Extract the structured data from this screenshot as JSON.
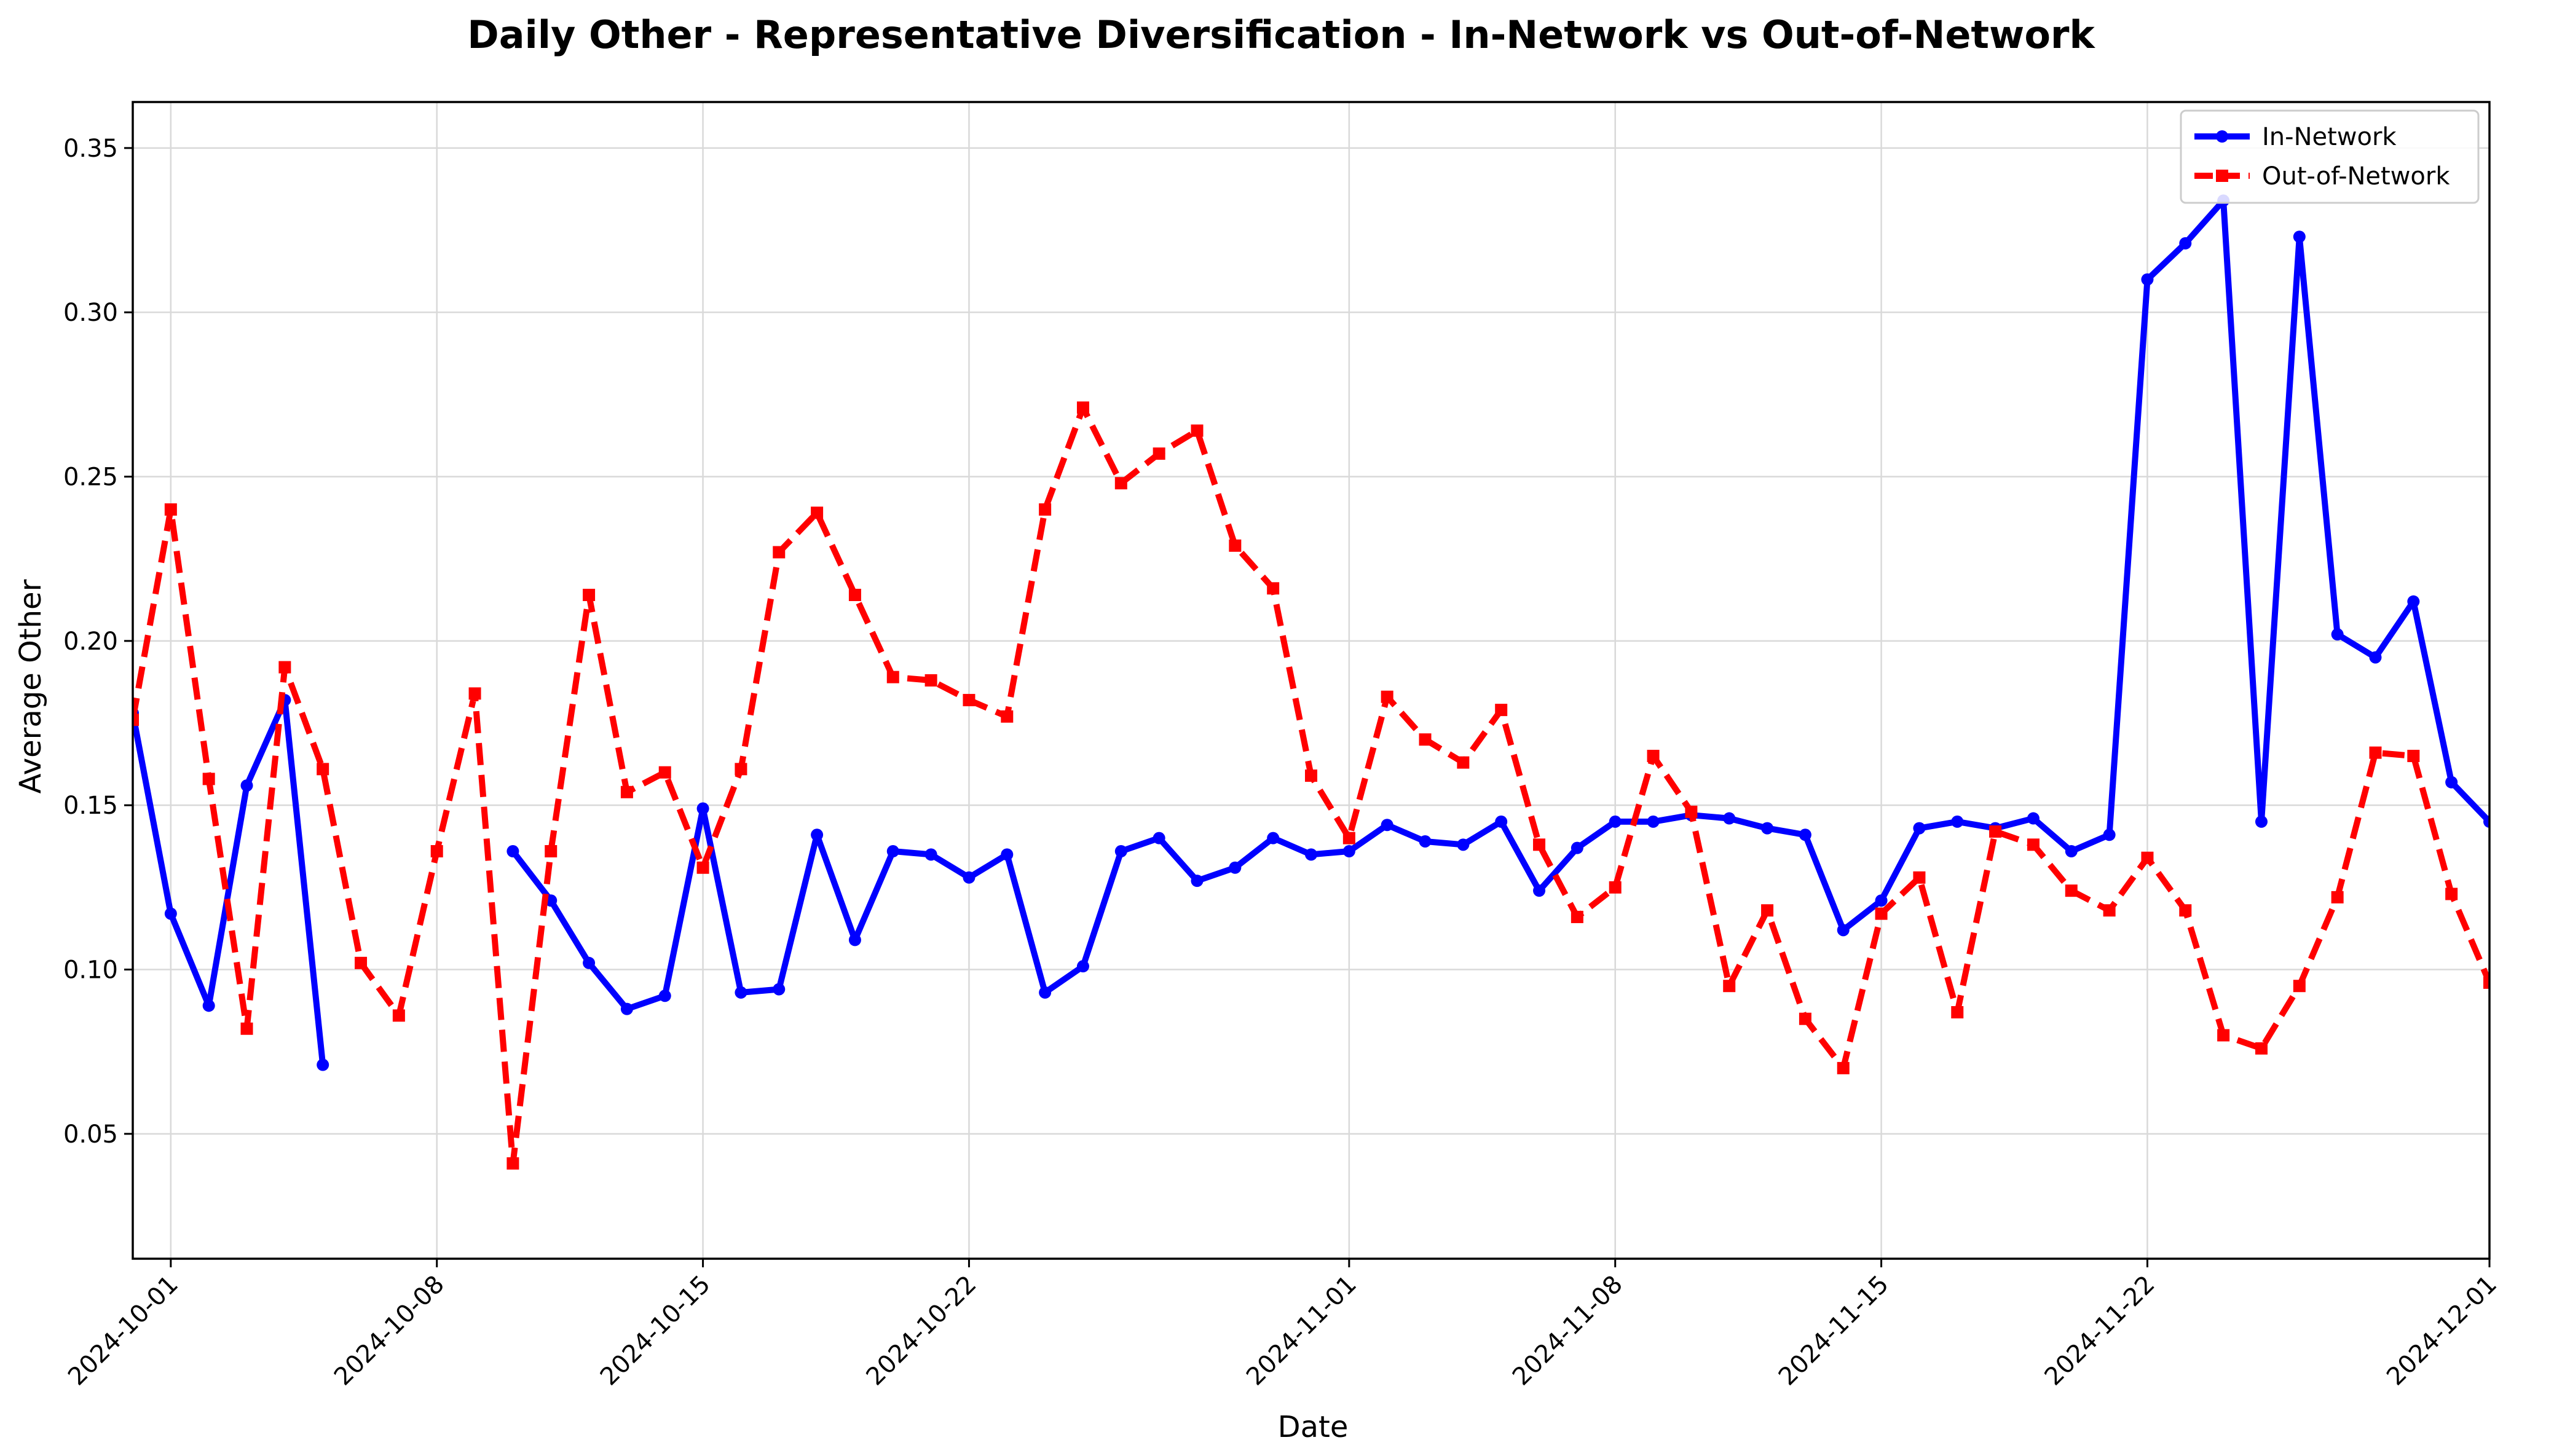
{
  "chart_data": {
    "type": "line",
    "title": "Daily Other - Representative Diversification - In-Network vs Out-of-Network",
    "xlabel": "Date",
    "ylabel": "Average Other",
    "x_start": "2024-09-30",
    "x_range": [
      "2024-09-30",
      "2024-12-01"
    ],
    "ylim": [
      0.012,
      0.364
    ],
    "x_ticks": [
      "2024-10-01",
      "2024-10-08",
      "2024-10-15",
      "2024-10-22",
      "2024-11-01",
      "2024-11-08",
      "2024-11-15",
      "2024-11-22",
      "2024-12-01"
    ],
    "y_ticks": [
      0.05,
      0.1,
      0.15,
      0.2,
      0.25,
      0.3,
      0.35
    ],
    "y_tick_labels": [
      "0.05",
      "0.10",
      "0.15",
      "0.20",
      "0.25",
      "0.30",
      "0.35"
    ],
    "grid": true,
    "legend_position": "top-right",
    "series": [
      {
        "name": "In-Network",
        "color": "#0000ff",
        "style": "solid",
        "marker": "circle",
        "values": [
          0.178,
          0.117,
          0.089,
          0.156,
          0.182,
          0.071,
          null,
          null,
          null,
          null,
          0.136,
          0.121,
          0.102,
          0.088,
          0.092,
          0.149,
          0.093,
          0.094,
          0.141,
          0.109,
          0.136,
          0.135,
          0.128,
          0.135,
          0.093,
          0.101,
          0.136,
          0.14,
          0.127,
          0.131,
          0.14,
          0.135,
          0.136,
          0.144,
          0.139,
          0.138,
          0.145,
          0.124,
          0.137,
          0.145,
          0.145,
          0.147,
          0.146,
          0.143,
          0.141,
          0.112,
          0.121,
          0.143,
          0.145,
          0.143,
          0.146,
          0.136,
          0.141,
          0.31,
          0.321,
          0.334,
          0.145,
          0.323,
          0.202,
          0.195,
          0.212,
          0.157,
          0.145
        ]
      },
      {
        "name": "Out-of-Network",
        "color": "#ff0000",
        "style": "dashed",
        "marker": "square",
        "values": [
          0.176,
          0.24,
          0.158,
          0.082,
          0.192,
          0.161,
          0.102,
          0.086,
          0.136,
          0.184,
          0.041,
          0.136,
          0.214,
          0.154,
          0.16,
          0.131,
          0.161,
          0.227,
          0.239,
          0.214,
          0.189,
          0.188,
          0.182,
          0.177,
          0.24,
          0.271,
          0.248,
          0.257,
          0.264,
          0.229,
          0.216,
          0.159,
          0.14,
          0.183,
          0.17,
          0.163,
          0.179,
          0.138,
          0.116,
          0.125,
          0.165,
          0.148,
          0.095,
          0.118,
          0.085,
          0.07,
          0.117,
          0.128,
          0.087,
          0.142,
          0.138,
          0.124,
          0.118,
          0.134,
          0.118,
          0.08,
          0.076,
          0.095,
          0.122,
          0.166,
          0.165,
          0.123,
          0.096
        ]
      }
    ]
  }
}
